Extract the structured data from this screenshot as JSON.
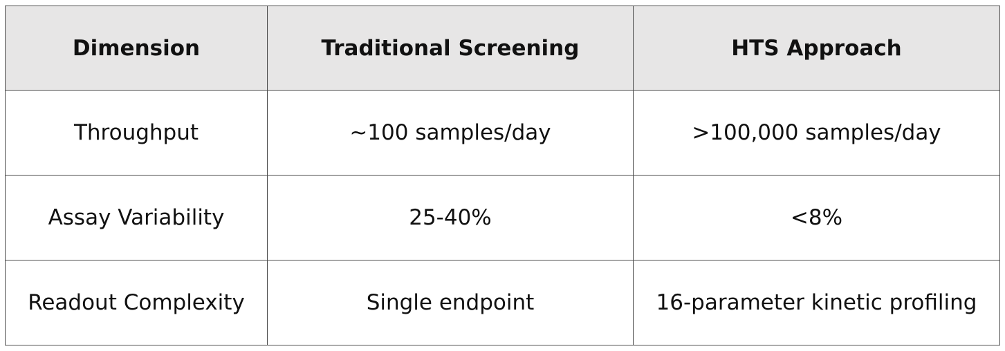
{
  "table": {
    "headers": [
      "Dimension",
      "Traditional Screening",
      "HTS Approach"
    ],
    "rows": [
      [
        "Throughput",
        "~100 samples/day",
        ">100,000 samples/day"
      ],
      [
        "Assay Variability",
        "25-40%",
        "<8%"
      ],
      [
        "Readout Complexity",
        "Single endpoint",
        "16-parameter kinetic profiling"
      ]
    ]
  },
  "colors": {
    "header_background": "#e7e6e6",
    "border": "#4a4a4a",
    "text": "#111111"
  }
}
